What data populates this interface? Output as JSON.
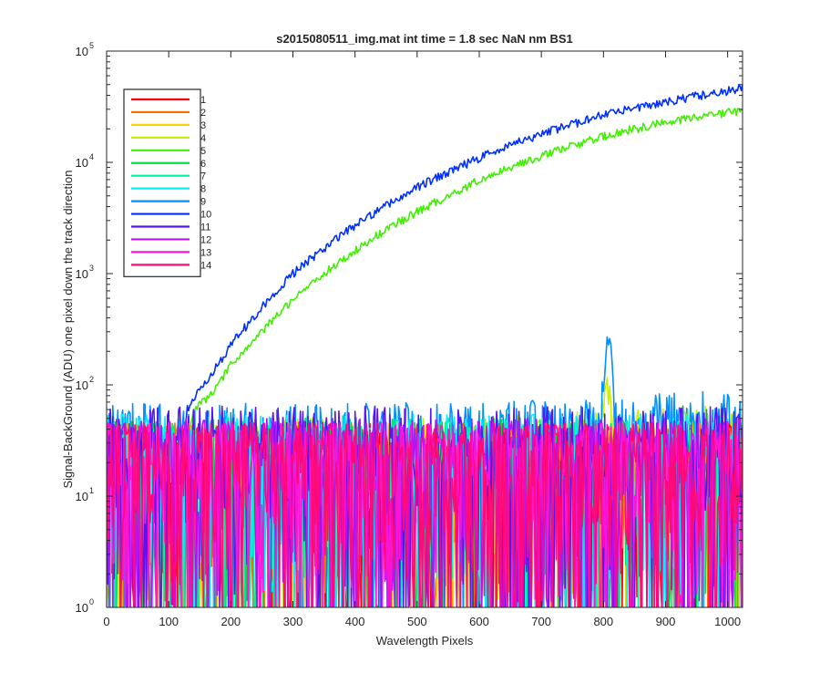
{
  "chart_data": {
    "type": "line",
    "title": "s2015080511_img.mat int time = 1.8 sec  NaN nm BS1",
    "xlabel": "Wavelength Pixels",
    "ylabel": "Signal-BackGround (ADU) one pixel down the track direction",
    "xlim": [
      0,
      1024
    ],
    "ylim": [
      1,
      100000
    ],
    "yscale": "log",
    "grid": false,
    "legend_location": "top-left",
    "x_ticks": [
      0,
      100,
      200,
      300,
      400,
      500,
      600,
      700,
      800,
      900,
      1000
    ],
    "y_ticks": [
      {
        "value": 1,
        "base": "10",
        "exp": "0"
      },
      {
        "value": 10,
        "base": "10",
        "exp": "1"
      },
      {
        "value": 100,
        "base": "10",
        "exp": "2"
      },
      {
        "value": 1000,
        "base": "10",
        "exp": "3"
      },
      {
        "value": 10000,
        "base": "10",
        "exp": "4"
      },
      {
        "value": 100000,
        "base": "10",
        "exp": "5"
      }
    ],
    "series": [
      {
        "name": "1",
        "color": "#ff0000",
        "kind": "noise",
        "level": 20
      },
      {
        "name": "2",
        "color": "#ff6a00",
        "kind": "noise",
        "level": 20
      },
      {
        "name": "3",
        "color": "#ffd000",
        "kind": "noise",
        "level": 20
      },
      {
        "name": "4",
        "color": "#c8f000",
        "kind": "noise",
        "level": 22,
        "peak_x": 805,
        "peak_y": 90
      },
      {
        "name": "5",
        "color": "#40f000",
        "kind": "signal",
        "x": [
          0,
          130,
          140,
          160,
          180,
          200,
          250,
          300,
          350,
          400,
          450,
          500,
          550,
          600,
          650,
          700,
          750,
          800,
          850,
          900,
          950,
          1000,
          1024
        ],
        "y": [
          22,
          30,
          60,
          75,
          100,
          150,
          300,
          600,
          1000,
          1600,
          2500,
          3600,
          5000,
          7000,
          9000,
          11500,
          14000,
          17000,
          20000,
          23000,
          25500,
          28000,
          29000
        ]
      },
      {
        "name": "6",
        "color": "#00e040",
        "kind": "noise",
        "level": 22
      },
      {
        "name": "7",
        "color": "#00f0a0",
        "kind": "noise",
        "level": 22
      },
      {
        "name": "8",
        "color": "#00f0ff",
        "kind": "noise",
        "level": 24
      },
      {
        "name": "9",
        "color": "#0090ff",
        "kind": "noise",
        "level": 30,
        "peak_x": 808,
        "peak_y": 250
      },
      {
        "name": "10",
        "color": "#0030ff",
        "kind": "signal",
        "x": [
          0,
          120,
          130,
          150,
          175,
          200,
          250,
          300,
          350,
          400,
          450,
          500,
          550,
          600,
          650,
          700,
          750,
          800,
          850,
          900,
          950,
          1000,
          1024
        ],
        "y": [
          22,
          30,
          60,
          90,
          140,
          230,
          500,
          1000,
          1700,
          2700,
          4100,
          6000,
          8200,
          11000,
          14500,
          18000,
          22000,
          27000,
          31000,
          35000,
          39500,
          44000,
          47000
        ]
      },
      {
        "name": "11",
        "color": "#5a14f0",
        "kind": "noise",
        "level": 28
      },
      {
        "name": "12",
        "color": "#b414f0",
        "kind": "noise",
        "level": 22
      },
      {
        "name": "13",
        "color": "#ff14d2",
        "kind": "noise",
        "level": 20
      },
      {
        "name": "14",
        "color": "#ff0a78",
        "kind": "noise",
        "level": 20
      }
    ]
  }
}
